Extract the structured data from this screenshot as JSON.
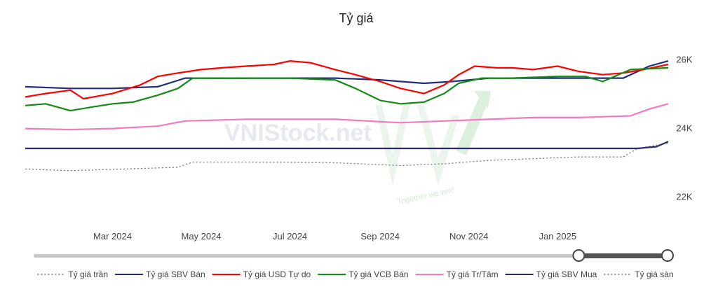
{
  "chart_data": {
    "type": "line",
    "title": "Tỷ giá",
    "x_ticks": [
      "Mar 2024",
      "May 2024",
      "Jul 2024",
      "Sep 2024",
      "Nov 2024",
      "Jan 2025"
    ],
    "x_range": [
      "2024-01-01",
      "2025-03-18"
    ],
    "y_ticks": [
      {
        "value": 22000,
        "label": "22K"
      },
      {
        "value": 24000,
        "label": "24K"
      },
      {
        "value": 26000,
        "label": "26K"
      }
    ],
    "ylim": [
      21500,
      26300
    ],
    "grid": false,
    "legend_position": "bottom",
    "series": [
      {
        "name": "Tỷ giá trần",
        "color": "#777777",
        "style": "dotted",
        "points": [
          [
            "2024-01-01",
            22800
          ],
          [
            "2024-02-01",
            22750
          ],
          [
            "2024-03-10",
            22800
          ],
          [
            "2024-04-15",
            22850
          ],
          [
            "2024-04-25",
            23000
          ],
          [
            "2024-06-01",
            23000
          ],
          [
            "2024-08-01",
            22980
          ],
          [
            "2024-09-15",
            22900
          ],
          [
            "2024-10-15",
            22950
          ],
          [
            "2024-11-15",
            23050
          ],
          [
            "2024-12-15",
            23100
          ],
          [
            "2025-01-15",
            23150
          ],
          [
            "2025-02-15",
            23150
          ],
          [
            "2025-02-25",
            23400
          ],
          [
            "2025-03-18",
            23550
          ]
        ]
      },
      {
        "name": "Tỷ giá SBV Bán",
        "color": "#1f2e7a",
        "style": "solid",
        "points": [
          [
            "2024-01-01",
            25200
          ],
          [
            "2024-02-01",
            25150
          ],
          [
            "2024-03-01",
            25150
          ],
          [
            "2024-04-01",
            25200
          ],
          [
            "2024-04-20",
            25450
          ],
          [
            "2024-06-01",
            25450
          ],
          [
            "2024-08-01",
            25450
          ],
          [
            "2024-09-01",
            25400
          ],
          [
            "2024-10-01",
            25300
          ],
          [
            "2024-10-20",
            25350
          ],
          [
            "2024-11-15",
            25450
          ],
          [
            "2025-01-01",
            25450
          ],
          [
            "2025-02-15",
            25450
          ],
          [
            "2025-03-05",
            25800
          ],
          [
            "2025-03-18",
            25950
          ]
        ]
      },
      {
        "name": "Tỷ giá USD Tự do",
        "color": "#ff0000",
        "style": "solid",
        "points": [
          [
            "2024-01-01",
            24900
          ],
          [
            "2024-01-15",
            25000
          ],
          [
            "2024-02-01",
            25100
          ],
          [
            "2024-02-10",
            24850
          ],
          [
            "2024-03-01",
            25000
          ],
          [
            "2024-03-20",
            25250
          ],
          [
            "2024-04-01",
            25500
          ],
          [
            "2024-04-15",
            25600
          ],
          [
            "2024-05-01",
            25700
          ],
          [
            "2024-05-15",
            25750
          ],
          [
            "2024-06-01",
            25800
          ],
          [
            "2024-06-20",
            25850
          ],
          [
            "2024-07-01",
            25950
          ],
          [
            "2024-07-15",
            25900
          ],
          [
            "2024-08-01",
            25700
          ],
          [
            "2024-08-15",
            25550
          ],
          [
            "2024-09-01",
            25350
          ],
          [
            "2024-09-15",
            25150
          ],
          [
            "2024-10-01",
            25000
          ],
          [
            "2024-10-15",
            25250
          ],
          [
            "2024-10-25",
            25550
          ],
          [
            "2024-11-05",
            25800
          ],
          [
            "2024-11-20",
            25750
          ],
          [
            "2024-12-01",
            25750
          ],
          [
            "2024-12-15",
            25700
          ],
          [
            "2025-01-01",
            25800
          ],
          [
            "2025-01-15",
            25650
          ],
          [
            "2025-02-01",
            25550
          ],
          [
            "2025-02-15",
            25600
          ],
          [
            "2025-03-01",
            25700
          ],
          [
            "2025-03-18",
            25850
          ]
        ]
      },
      {
        "name": "Tỷ giá VCB Bán",
        "color": "#138a13",
        "style": "solid",
        "points": [
          [
            "2024-01-01",
            24650
          ],
          [
            "2024-01-15",
            24700
          ],
          [
            "2024-02-01",
            24500
          ],
          [
            "2024-02-15",
            24600
          ],
          [
            "2024-03-01",
            24700
          ],
          [
            "2024-03-15",
            24750
          ],
          [
            "2024-04-01",
            24950
          ],
          [
            "2024-04-15",
            25150
          ],
          [
            "2024-04-25",
            25450
          ],
          [
            "2024-06-01",
            25450
          ],
          [
            "2024-07-01",
            25450
          ],
          [
            "2024-08-01",
            25400
          ],
          [
            "2024-08-15",
            25150
          ],
          [
            "2024-09-01",
            24800
          ],
          [
            "2024-09-15",
            24700
          ],
          [
            "2024-10-01",
            24750
          ],
          [
            "2024-10-15",
            25000
          ],
          [
            "2024-10-25",
            25300
          ],
          [
            "2024-11-10",
            25450
          ],
          [
            "2024-12-01",
            25450
          ],
          [
            "2025-01-01",
            25500
          ],
          [
            "2025-01-20",
            25500
          ],
          [
            "2025-02-01",
            25350
          ],
          [
            "2025-02-20",
            25700
          ],
          [
            "2025-03-18",
            25750
          ]
        ]
      },
      {
        "name": "Tỷ giá Tr/Tâm",
        "color": "#f27ac2",
        "style": "solid",
        "points": [
          [
            "2024-01-01",
            23980
          ],
          [
            "2024-02-01",
            23950
          ],
          [
            "2024-03-01",
            23980
          ],
          [
            "2024-04-01",
            24050
          ],
          [
            "2024-04-20",
            24200
          ],
          [
            "2024-06-01",
            24250
          ],
          [
            "2024-08-01",
            24250
          ],
          [
            "2024-09-15",
            24150
          ],
          [
            "2024-10-15",
            24200
          ],
          [
            "2024-11-15",
            24250
          ],
          [
            "2024-12-15",
            24300
          ],
          [
            "2025-01-15",
            24300
          ],
          [
            "2025-02-20",
            24350
          ],
          [
            "2025-03-05",
            24550
          ],
          [
            "2025-03-18",
            24700
          ]
        ]
      },
      {
        "name": "Tỷ giá SBV Mua",
        "color": "#2a2a6e",
        "style": "solid",
        "points": [
          [
            "2024-01-01",
            23400
          ],
          [
            "2025-02-25",
            23400
          ],
          [
            "2025-03-10",
            23450
          ],
          [
            "2025-03-18",
            23600
          ]
        ]
      },
      {
        "name": "Tỷ giá sàn",
        "color": "#777777",
        "style": "dotted",
        "points": []
      }
    ],
    "range_slider": {
      "start": 0.86,
      "end": 1.0
    }
  },
  "watermark": {
    "brand": "VNIStock.net",
    "slogan": "Together we win!"
  }
}
